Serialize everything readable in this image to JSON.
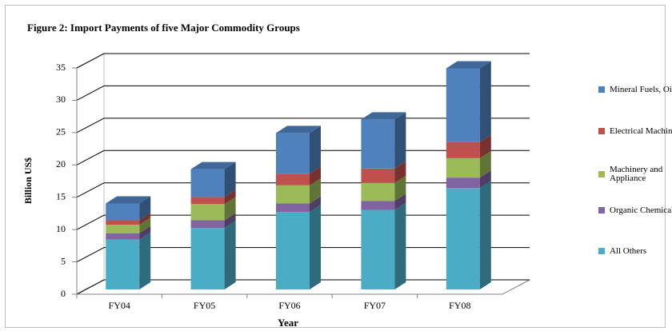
{
  "chart_data": {
    "type": "bar3d_stacked",
    "title": "Figure 2: Import Payments of five Major Commodity Groups",
    "x_label": "Year",
    "y_label": "Billion US$",
    "categories": [
      "FY04",
      "FY05",
      "FY06",
      "FY07",
      "FY08"
    ],
    "series": [
      {
        "name": "All Others",
        "color": "#4bacc6",
        "values": [
          7.7,
          9.5,
          12.0,
          12.3,
          15.7
        ]
      },
      {
        "name": "Organic Chemicals",
        "color": "#8064a2",
        "values": [
          1.0,
          1.2,
          1.3,
          1.4,
          1.6
        ]
      },
      {
        "name": "Machinery and Appliance",
        "color": "#9bbb59",
        "values": [
          1.3,
          2.5,
          2.8,
          2.8,
          3.0
        ]
      },
      {
        "name": "Electrical Machinery",
        "color": "#c0504d",
        "values": [
          0.7,
          1.1,
          1.8,
          2.2,
          2.5
        ]
      },
      {
        "name": "Mineral Fuels, Oils",
        "color": "#4f81bd",
        "values": [
          2.6,
          4.3,
          6.3,
          7.6,
          11.4
        ]
      }
    ],
    "ylim": [
      0,
      35
    ],
    "yticks": [
      0,
      5,
      10,
      15,
      20,
      25,
      30,
      35
    ],
    "grid": true
  }
}
